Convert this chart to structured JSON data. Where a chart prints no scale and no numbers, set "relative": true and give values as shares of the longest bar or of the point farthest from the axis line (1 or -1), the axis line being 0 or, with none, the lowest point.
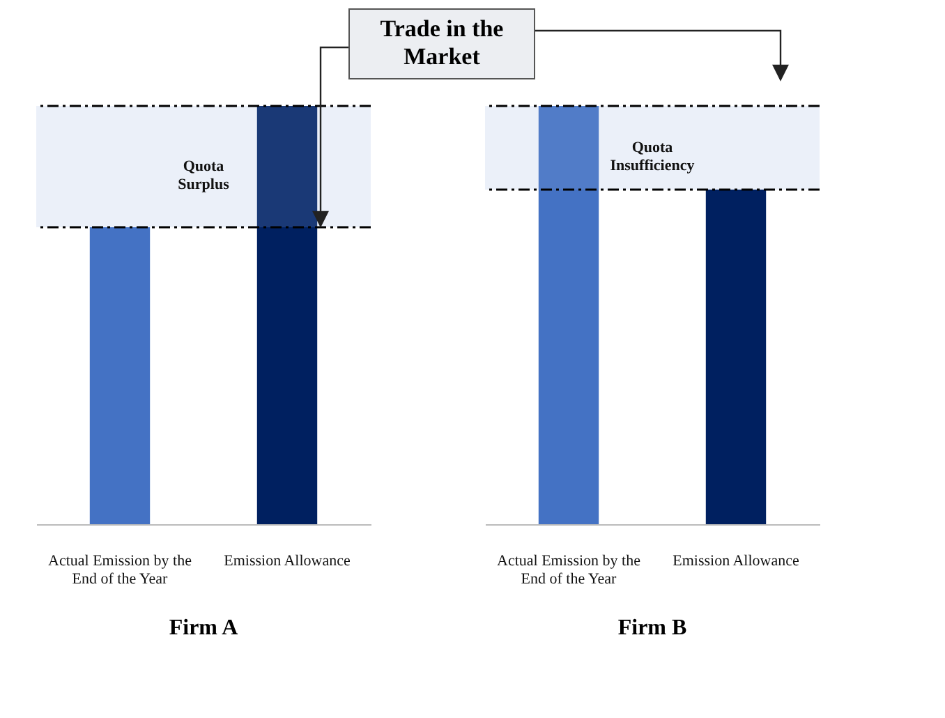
{
  "chart_data": [
    {
      "type": "bar",
      "title": "Firm A",
      "relative": true,
      "categories": [
        "Actual Emission by the End of the Year",
        "Emission Allowance"
      ],
      "values": [
        0.71,
        1
      ],
      "colors": [
        "#4472c4",
        "#002060"
      ],
      "ref_lines": [
        {
          "axis": "y",
          "value": 0.71,
          "line_style": "dashed",
          "color": "#000000"
        },
        {
          "axis": "y",
          "value": 1,
          "line_style": "dashed",
          "color": "#000000"
        }
      ],
      "bands": [
        {
          "axis": "y",
          "from": 0.71,
          "to": 1,
          "label": "Quota Surplus",
          "color": "#8faadc"
        }
      ],
      "annotations": [
        "Trade in the Market"
      ]
    },
    {
      "type": "bar",
      "title": "Firm B",
      "relative": true,
      "categories": [
        "Actual Emission by the End of the Year",
        "Emission Allowance"
      ],
      "values": [
        1,
        0.8
      ],
      "colors": [
        "#4472c4",
        "#002060"
      ],
      "ref_lines": [
        {
          "axis": "y",
          "value": 0.8,
          "line_style": "dashed",
          "color": "#000000"
        },
        {
          "axis": "y",
          "value": 1,
          "line_style": "dashed",
          "color": "#000000"
        }
      ],
      "bands": [
        {
          "axis": "y",
          "from": 0.8,
          "to": 1,
          "label": "Quota Insufficiency",
          "color": "#8faadc"
        }
      ]
    }
  ]
}
